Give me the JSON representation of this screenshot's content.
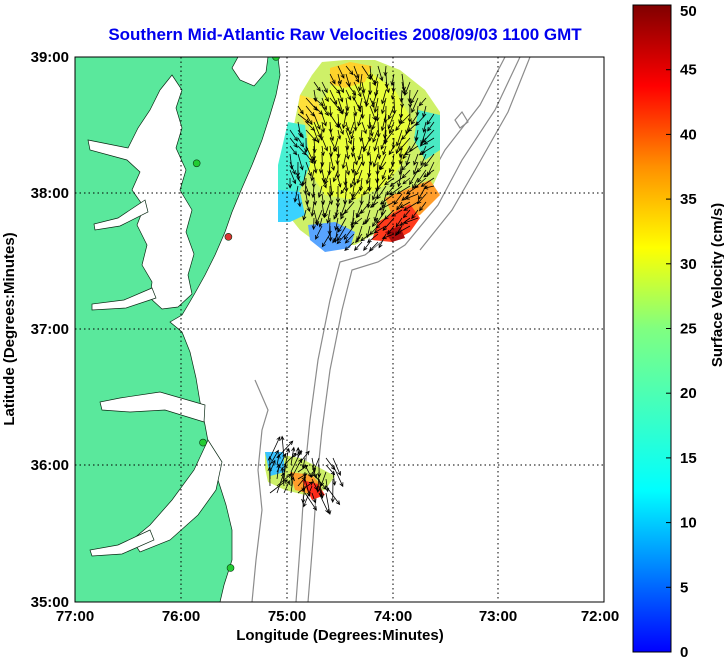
{
  "title": "Southern Mid-Atlantic Raw Velocities 2008/09/03 1100 GMT",
  "map": {
    "xlabel": "Longitude (Degrees:Minutes)",
    "ylabel": "Latitude (Degrees:Minutes)",
    "lon_ticks": [
      "77:00",
      "76:00",
      "75:00",
      "74:00",
      "73:00",
      "72:00"
    ],
    "lat_ticks": [
      "39:00",
      "38:00",
      "37:00",
      "36:00",
      "35:00"
    ],
    "lon_range": [
      -77,
      -72
    ],
    "lat_range": [
      35,
      39
    ],
    "grid": "dotted",
    "colors": {
      "land": "#5ae89c",
      "ocean": "#ffffff",
      "isobath": "#8c8c8c",
      "vector": "#000000",
      "grid": "#000000",
      "station": "#22cc33",
      "station_alt": "#dd3333"
    },
    "stations": [
      {
        "lon": -75.1,
        "lat": 39.0,
        "color": "#22cc33"
      },
      {
        "lon": -75.85,
        "lat": 38.22,
        "color": "#22cc33"
      },
      {
        "lon": -75.55,
        "lat": 37.68,
        "color": "#dd3333"
      },
      {
        "lon": -75.79,
        "lat": 36.17,
        "color": "#22cc33"
      },
      {
        "lon": -75.53,
        "lat": 35.25,
        "color": "#22cc33"
      }
    ]
  },
  "colorbar": {
    "label": "Surface Velocity (cm/s)",
    "ticks": [
      "0",
      "5",
      "10",
      "15",
      "20",
      "25",
      "30",
      "35",
      "40",
      "45",
      "50"
    ],
    "range": [
      0,
      50
    ],
    "colormap": "jet"
  }
}
